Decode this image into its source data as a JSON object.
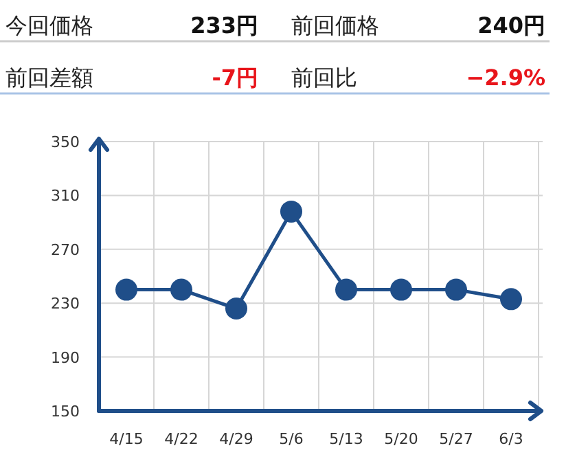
{
  "chart_data": {
    "type": "line",
    "annotations": [
      "今回価格",
      "233円",
      "前回価格",
      "240円",
      "前回差額",
      "-7円",
      "前回比",
      "−2.9%"
    ],
    "categories": [
      "4/15",
      "4/22",
      "4/29",
      "5/6",
      "5/13",
      "5/20",
      "5/27",
      "6/3"
    ],
    "series": [
      {
        "color": "#1f4e89",
        "values": [
          240,
          240,
          226,
          298,
          240,
          240,
          240,
          233
        ]
      }
    ],
    "ylim": [
      150,
      350
    ],
    "yticks": [
      150,
      190,
      230,
      270,
      310,
      350
    ],
    "grid": true,
    "marker": "circle"
  }
}
